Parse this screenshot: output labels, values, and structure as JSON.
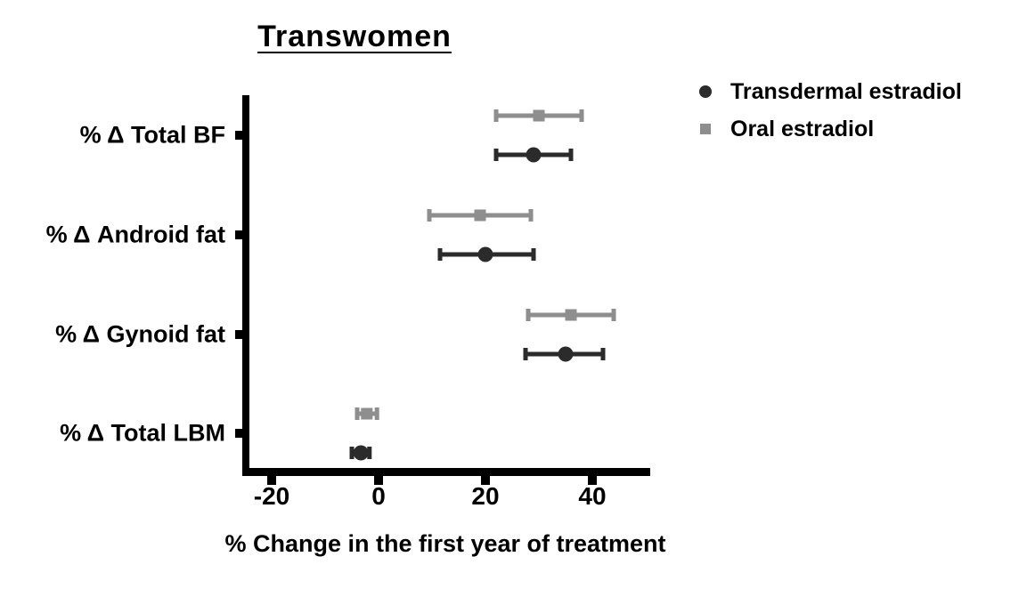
{
  "page": {
    "background": "#ffffff"
  },
  "chart_data": {
    "type": "scatter",
    "subtype": "horizontal-dot-plot-with-error-bars",
    "title": "Transwomen",
    "xlabel": "% Change in the first year of treatment",
    "ylabel": "",
    "categories": [
      "% Δ Total BF",
      "% Δ Android fat",
      "% Δ Gynoid fat",
      "% Δ Total LBM"
    ],
    "x_ticks": [
      -20,
      0,
      20,
      40
    ],
    "xlim": [
      -25.5,
      51
    ],
    "grid": false,
    "legend_position": "top-right",
    "axis_color": "#000000",
    "series": [
      {
        "name": "Transdermal estradiol",
        "marker": "circle",
        "color": "#2b2b2b",
        "row": "below",
        "values": [
          29,
          20,
          35,
          -3.3
        ],
        "ci_low": [
          22,
          11.5,
          27.5,
          -5
        ],
        "ci_high": [
          36,
          29,
          42,
          -1.7
        ]
      },
      {
        "name": "Oral estradiol",
        "marker": "square",
        "color": "#8e8e8e",
        "row": "above",
        "values": [
          30,
          19,
          36,
          -2.2
        ],
        "ci_low": [
          22,
          9.5,
          28,
          -4
        ],
        "ci_high": [
          38,
          28.5,
          44,
          -0.3
        ]
      }
    ]
  }
}
